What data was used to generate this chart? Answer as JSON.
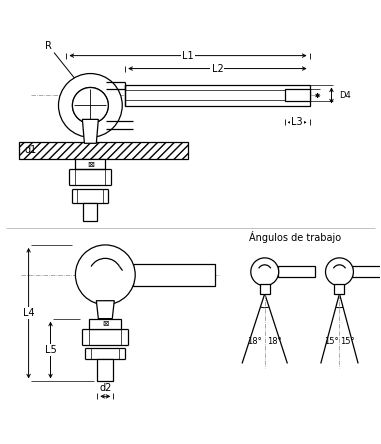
{
  "bg_color": "#ffffff",
  "line_color": "#000000",
  "labels": {
    "L1": "L1",
    "L2": "L2",
    "L3": "L3",
    "L4": "L4",
    "L5": "L5",
    "d1": "d1",
    "d2": "d2",
    "D4": "D4",
    "R": "R",
    "angulos": "Ángulos de trabajo",
    "ang1": "18°",
    "ang2": "18°",
    "ang3": "15°",
    "ang4": "15°"
  }
}
